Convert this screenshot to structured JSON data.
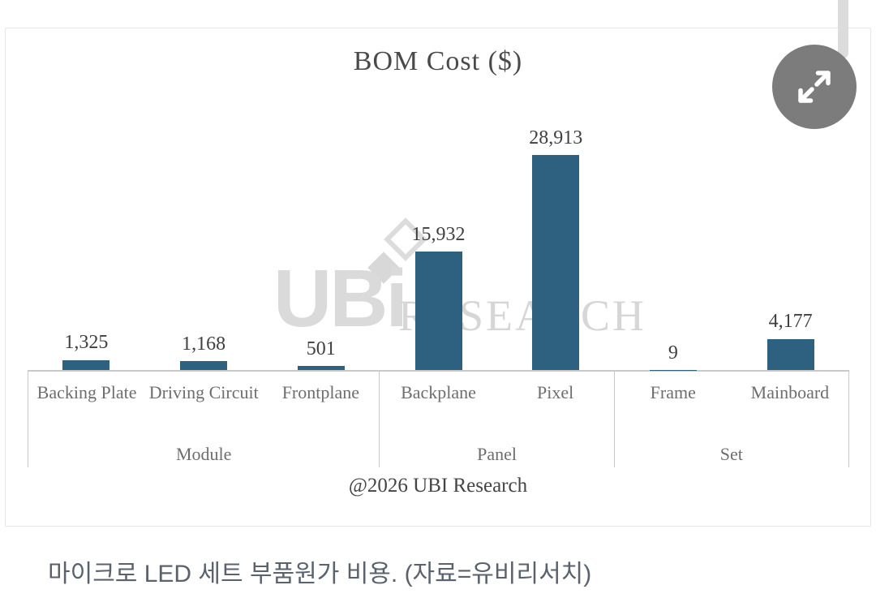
{
  "caption": {
    "text": "마이크로 LED 세트 부품원가 비용. (자료=유비리서치)"
  },
  "ui": {
    "expand_button_icon": "expand-arrows-icon",
    "scrollbar_thumb": "vertical-scrollbar-thumb"
  },
  "chart_data": {
    "type": "bar",
    "title": "BOM Cost ($)",
    "categories": [
      "Backing Plate",
      "Driving Circuit",
      "Frontplane",
      "Backplane",
      "Pixel",
      "Frame",
      "Mainboard"
    ],
    "values": [
      1325,
      1168,
      501,
      15932,
      28913,
      9,
      4177
    ],
    "value_labels": [
      "1,325",
      "1,168",
      "501",
      "15,932",
      "28,913",
      "9",
      "4,177"
    ],
    "groups": [
      {
        "label": "Module",
        "span": 3
      },
      {
        "label": "Panel",
        "span": 2
      },
      {
        "label": "Set",
        "span": 2
      }
    ],
    "footnote": "@2026 UBI Research",
    "bar_color": "#2E617F",
    "ylim": [
      0,
      28913
    ],
    "grid": false,
    "legend": false,
    "xlabel": "",
    "ylabel": "",
    "watermark": {
      "logo": "UBi",
      "text": "RESEARCH"
    }
  }
}
